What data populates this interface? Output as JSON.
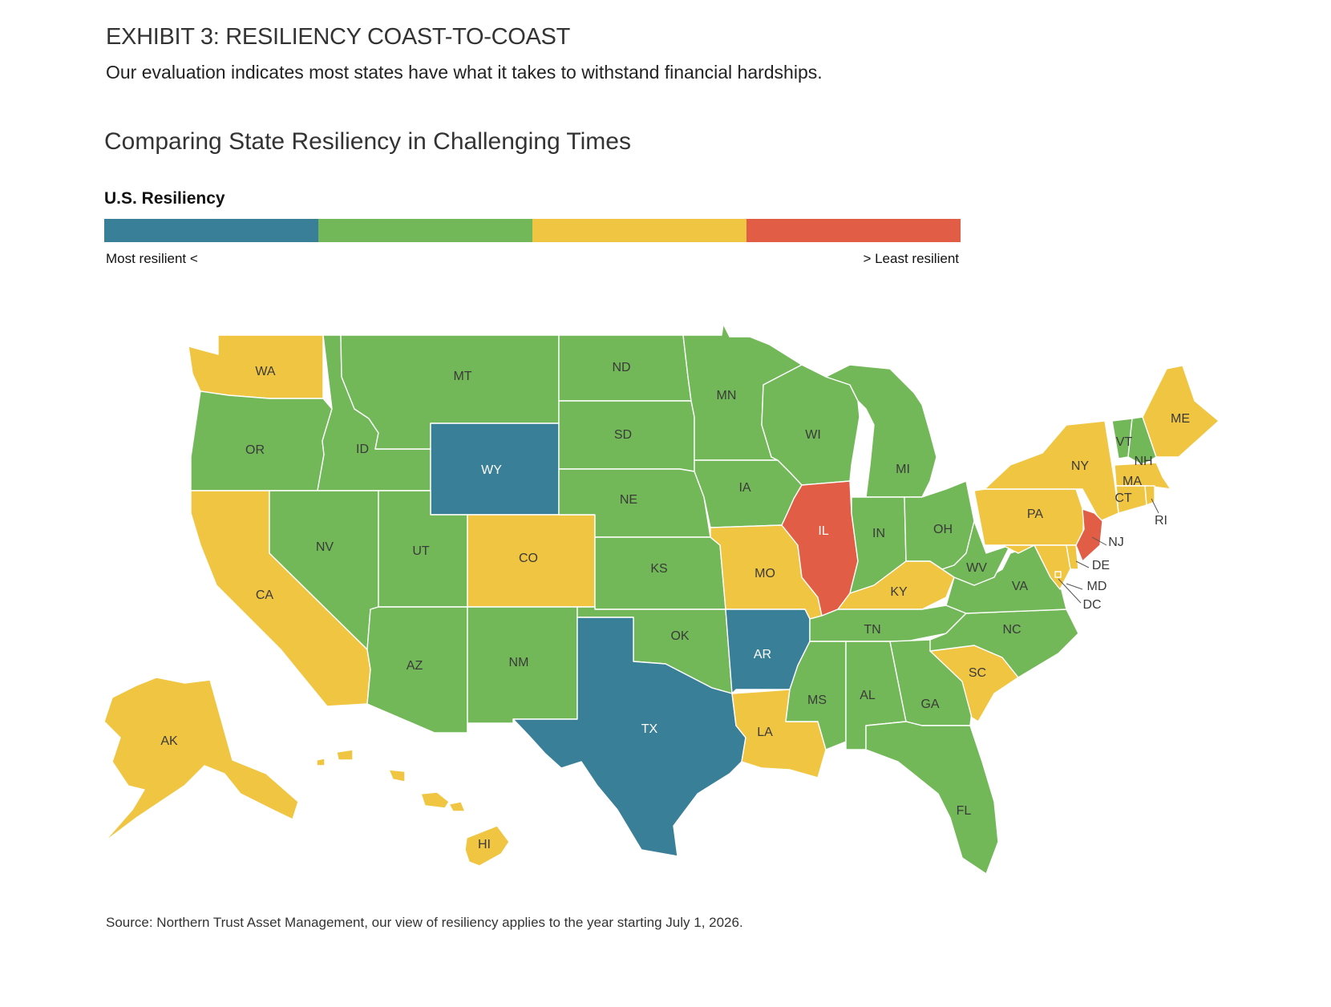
{
  "header": {
    "exhibit": "EXHIBIT 3: RESILIENCY COAST-TO-COAST",
    "subtitle": "Our evaluation indicates most states have what it takes to withstand financial hardships."
  },
  "map_title": "Comparing State Resiliency in Challenging Times",
  "legend": {
    "title": "U.S. Resiliency",
    "left_label": "Most resilient <",
    "right_label": "> Least resilient",
    "tiers": [
      {
        "tier": 1,
        "color": "#3a7f98"
      },
      {
        "tier": 2,
        "color": "#72b858"
      },
      {
        "tier": 3,
        "color": "#f0c542"
      },
      {
        "tier": 4,
        "color": "#e15d45"
      }
    ]
  },
  "tier_colors": {
    "1": "#3a7f98",
    "2": "#72b858",
    "3": "#f0c542",
    "4": "#e15d45"
  },
  "states": [
    {
      "code": "WA",
      "tier": 3
    },
    {
      "code": "OR",
      "tier": 2
    },
    {
      "code": "CA",
      "tier": 3
    },
    {
      "code": "ID",
      "tier": 2
    },
    {
      "code": "NV",
      "tier": 2
    },
    {
      "code": "MT",
      "tier": 2
    },
    {
      "code": "WY",
      "tier": 1
    },
    {
      "code": "UT",
      "tier": 2
    },
    {
      "code": "AZ",
      "tier": 2
    },
    {
      "code": "CO",
      "tier": 3
    },
    {
      "code": "NM",
      "tier": 2
    },
    {
      "code": "ND",
      "tier": 2
    },
    {
      "code": "SD",
      "tier": 2
    },
    {
      "code": "NE",
      "tier": 2
    },
    {
      "code": "KS",
      "tier": 2
    },
    {
      "code": "OK",
      "tier": 2
    },
    {
      "code": "TX",
      "tier": 1
    },
    {
      "code": "MN",
      "tier": 2
    },
    {
      "code": "IA",
      "tier": 2
    },
    {
      "code": "MO",
      "tier": 3
    },
    {
      "code": "AR",
      "tier": 1
    },
    {
      "code": "LA",
      "tier": 3
    },
    {
      "code": "WI",
      "tier": 2
    },
    {
      "code": "IL",
      "tier": 4
    },
    {
      "code": "MI",
      "tier": 2
    },
    {
      "code": "IN",
      "tier": 2
    },
    {
      "code": "OH",
      "tier": 2
    },
    {
      "code": "KY",
      "tier": 3
    },
    {
      "code": "TN",
      "tier": 2
    },
    {
      "code": "MS",
      "tier": 2
    },
    {
      "code": "AL",
      "tier": 2
    },
    {
      "code": "GA",
      "tier": 2
    },
    {
      "code": "FL",
      "tier": 2
    },
    {
      "code": "SC",
      "tier": 3
    },
    {
      "code": "NC",
      "tier": 2
    },
    {
      "code": "VA",
      "tier": 2
    },
    {
      "code": "WV",
      "tier": 2
    },
    {
      "code": "PA",
      "tier": 3
    },
    {
      "code": "NY",
      "tier": 3
    },
    {
      "code": "VT",
      "tier": 2
    },
    {
      "code": "NH",
      "tier": 2
    },
    {
      "code": "ME",
      "tier": 3
    },
    {
      "code": "MA",
      "tier": 3
    },
    {
      "code": "CT",
      "tier": 3
    },
    {
      "code": "RI",
      "tier": 3
    },
    {
      "code": "NJ",
      "tier": 4
    },
    {
      "code": "DE",
      "tier": 3
    },
    {
      "code": "MD",
      "tier": 3
    },
    {
      "code": "DC",
      "tier": 3
    },
    {
      "code": "AK",
      "tier": 3
    },
    {
      "code": "HI",
      "tier": 3
    }
  ],
  "source": "Source: Northern Trust Asset Management, our view of resiliency applies to the year starting July 1, 2026."
}
